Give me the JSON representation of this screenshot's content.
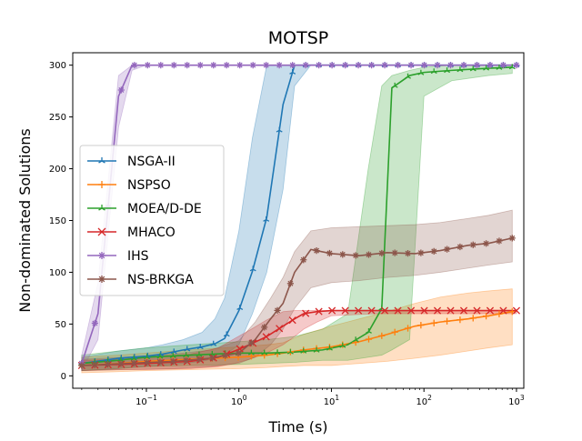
{
  "chart_data": {
    "type": "line",
    "title": "MOTSP",
    "xlabel": "Time (s)",
    "ylabel": "Non-dominated Solutions",
    "xscale": "log",
    "xlim": [
      0.016,
      1200
    ],
    "ylim": [
      -12,
      312
    ],
    "xticks": [
      {
        "value": 0.1,
        "base": "10",
        "exp": "−1"
      },
      {
        "value": 1,
        "base": "10",
        "exp": "0"
      },
      {
        "value": 10,
        "base": "10",
        "exp": "1"
      },
      {
        "value": 100,
        "base": "10",
        "exp": "2"
      },
      {
        "value": 1000,
        "base": "10",
        "exp": "3"
      }
    ],
    "yticks": [
      "0",
      "50",
      "100",
      "150",
      "200",
      "250",
      "300"
    ],
    "grid": false,
    "legend_position": "center-left",
    "series": [
      {
        "name": "NSGA-II",
        "color": "#1f77b4",
        "marker": "tri_up",
        "x": [
          0.02,
          0.05,
          0.1,
          0.15,
          0.25,
          0.4,
          0.55,
          0.7,
          1.0,
          1.4,
          2.0,
          3.0,
          4.0,
          6.0,
          10,
          30,
          100,
          300,
          1000
        ],
        "y": [
          12,
          17,
          19,
          21,
          25,
          28,
          31,
          36,
          63,
          101,
          153,
          262,
          300,
          300,
          300,
          300,
          300,
          300,
          300
        ],
        "lo": [
          5,
          7,
          9,
          10,
          12,
          14,
          17,
          20,
          30,
          60,
          100,
          180,
          280,
          300,
          300,
          300,
          300,
          300,
          300
        ],
        "hi": [
          18,
          24,
          27,
          30,
          35,
          42,
          55,
          75,
          140,
          230,
          300,
          300,
          300,
          300,
          300,
          300,
          300,
          300,
          300
        ]
      },
      {
        "name": "NSPSO",
        "color": "#ff7f0e",
        "marker": "plus",
        "x": [
          0.02,
          0.05,
          0.1,
          0.3,
          1.0,
          2,
          3,
          5,
          10,
          20,
          40,
          80,
          150,
          300,
          500,
          900
        ],
        "y": [
          10,
          12,
          14,
          16,
          18,
          20,
          22,
          25,
          28,
          33,
          40,
          48,
          52,
          55,
          58,
          62
        ],
        "lo": [
          3,
          4,
          5,
          6,
          7,
          8,
          9,
          10,
          10,
          12,
          14,
          17,
          20,
          24,
          27,
          30
        ],
        "hi": [
          18,
          20,
          22,
          25,
          28,
          30,
          32,
          40,
          48,
          55,
          62,
          70,
          76,
          80,
          82,
          84
        ]
      },
      {
        "name": "MOEA/D-DE",
        "color": "#2ca02c",
        "marker": "tri_up",
        "x": [
          0.02,
          0.05,
          0.1,
          0.3,
          1.0,
          2,
          4,
          8,
          15,
          25,
          35,
          45,
          70,
          100,
          200,
          500,
          900
        ],
        "y": [
          12,
          15,
          18,
          20,
          22,
          22,
          23,
          25,
          30,
          42,
          65,
          278,
          290,
          293,
          295,
          297,
          298
        ],
        "lo": [
          5,
          7,
          9,
          10,
          11,
          12,
          13,
          15,
          15,
          18,
          20,
          25,
          35,
          270,
          285,
          290,
          292
        ],
        "hi": [
          20,
          24,
          27,
          30,
          33,
          35,
          38,
          45,
          60,
          200,
          280,
          290,
          295,
          298,
          300,
          300,
          300
        ]
      },
      {
        "name": "MHACO",
        "color": "#d62728",
        "marker": "x",
        "x": [
          0.02,
          0.05,
          0.1,
          0.3,
          0.6,
          0.9,
          1.3,
          2.0,
          3.0,
          4.0,
          5.0,
          7,
          10,
          30,
          100,
          300,
          1000
        ],
        "y": [
          10,
          11,
          12,
          14,
          18,
          24,
          30,
          38,
          48,
          55,
          60,
          62,
          63,
          63,
          63,
          63,
          63
        ],
        "lo": [
          5,
          6,
          6,
          7,
          9,
          12,
          16,
          22,
          30,
          38,
          45,
          52,
          58,
          60,
          60,
          60,
          60
        ],
        "hi": [
          15,
          16,
          18,
          21,
          27,
          36,
          44,
          54,
          62,
          63,
          63,
          63,
          63,
          63,
          63,
          63,
          63
        ]
      },
      {
        "name": "IHS",
        "color": "#9467bd",
        "marker": "star",
        "x": [
          0.02,
          0.03,
          0.05,
          0.07,
          0.1,
          1,
          10,
          100,
          1000
        ],
        "y": [
          12,
          60,
          270,
          300,
          300,
          300,
          300,
          300,
          300
        ],
        "lo": [
          5,
          35,
          240,
          295,
          300,
          300,
          300,
          300,
          300
        ],
        "hi": [
          20,
          90,
          290,
          300,
          300,
          300,
          300,
          300,
          300
        ]
      },
      {
        "name": "NS-BRKGA",
        "color": "#8c564b",
        "marker": "star",
        "x": [
          0.02,
          0.06,
          0.2,
          0.5,
          1.0,
          1.5,
          2.2,
          3.0,
          4.0,
          6.0,
          10,
          20,
          40,
          80,
          150,
          300,
          500,
          900
        ],
        "y": [
          10,
          12,
          14,
          17,
          22,
          35,
          55,
          70,
          100,
          122,
          118,
          116,
          119,
          118,
          121,
          126,
          128,
          133
        ],
        "lo": [
          5,
          6,
          7,
          9,
          12,
          18,
          30,
          45,
          65,
          85,
          90,
          92,
          95,
          97,
          100,
          104,
          107,
          110
        ],
        "hi": [
          16,
          18,
          21,
          25,
          34,
          52,
          75,
          95,
          120,
          140,
          143,
          144,
          145,
          146,
          148,
          152,
          155,
          160
        ]
      }
    ]
  }
}
